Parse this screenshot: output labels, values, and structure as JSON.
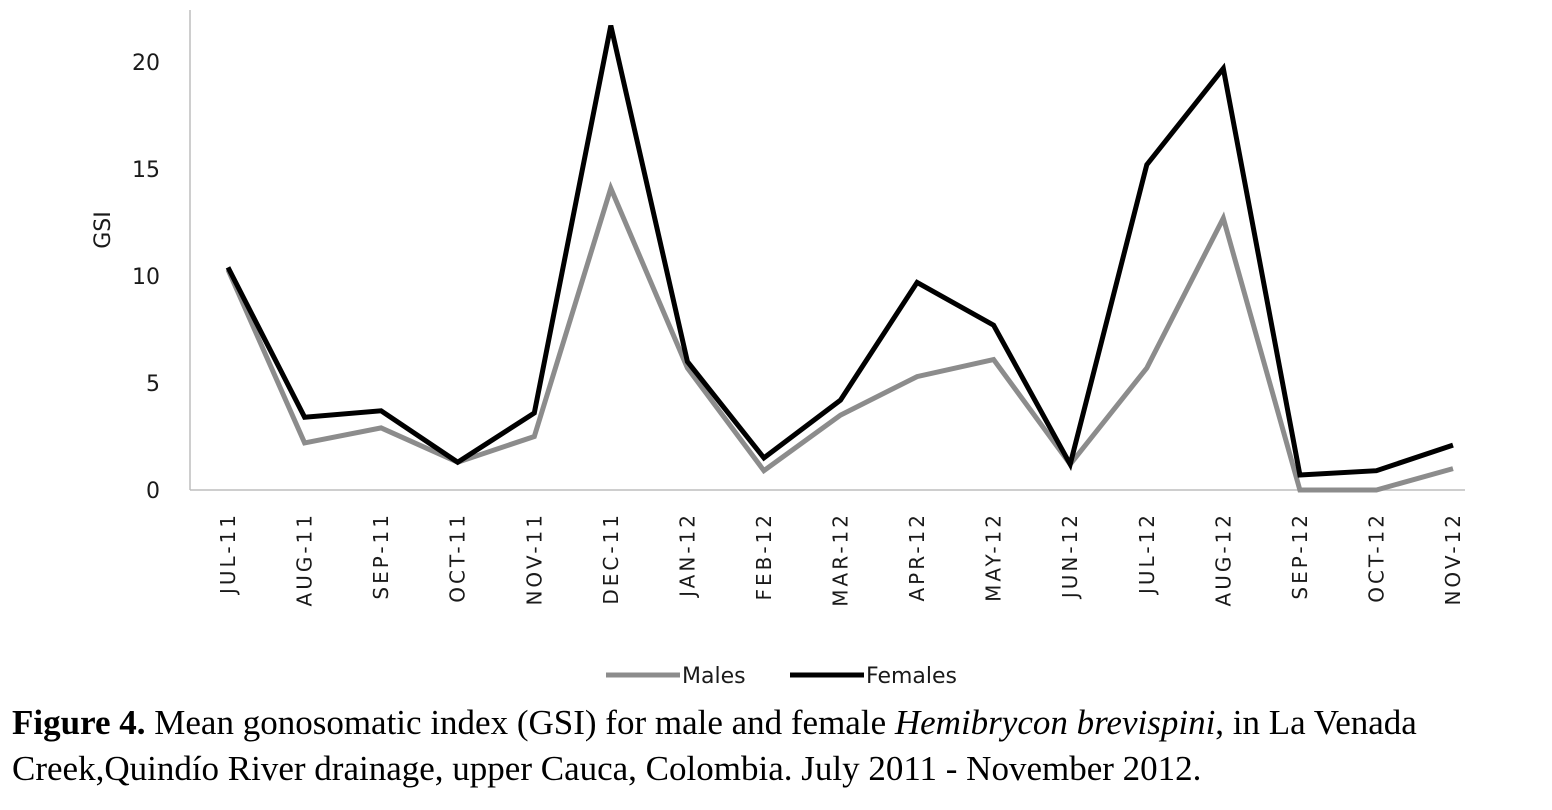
{
  "chart_data": {
    "type": "line",
    "categories": [
      "JUL-11",
      "AUG-11",
      "SEP-11",
      "OCT-11",
      "NOV-11",
      "DEC-11",
      "JAN-12",
      "FEB-12",
      "MAR-12",
      "APR-12",
      "MAY-12",
      "JUN-12",
      "JUL-12",
      "AUG-12",
      "SEP-12",
      "OCT-12",
      "NOV-12"
    ],
    "series": [
      {
        "name": "Males",
        "color": "#8c8c8c",
        "values": [
          10.3,
          2.2,
          2.9,
          1.3,
          2.5,
          14.1,
          5.7,
          0.9,
          3.5,
          5.3,
          6.1,
          1.2,
          5.7,
          12.7,
          0.0,
          0.0,
          1.0
        ]
      },
      {
        "name": "Females",
        "color": "#000000",
        "values": [
          10.4,
          3.4,
          3.7,
          1.3,
          3.6,
          21.7,
          6.0,
          1.5,
          4.2,
          9.7,
          7.7,
          1.2,
          15.2,
          19.7,
          0.7,
          0.9,
          2.1
        ]
      }
    ],
    "ylabel": "GSI",
    "xlabel": "",
    "ylim": [
      0,
      22
    ],
    "yticks": [
      0,
      5,
      10,
      15,
      20
    ],
    "grid": false,
    "legend_position": "bottom-center"
  },
  "caption": {
    "label": "Figure 4.",
    "text_before_italic": " Mean gonosomatic index (GSI) for male and female ",
    "species": "Hemibrycon brevispini",
    "text_after_italic": ", in La Venada Creek,Quindío River drainage, upper Cauca, Colombia. July 2011 - November 2012."
  }
}
